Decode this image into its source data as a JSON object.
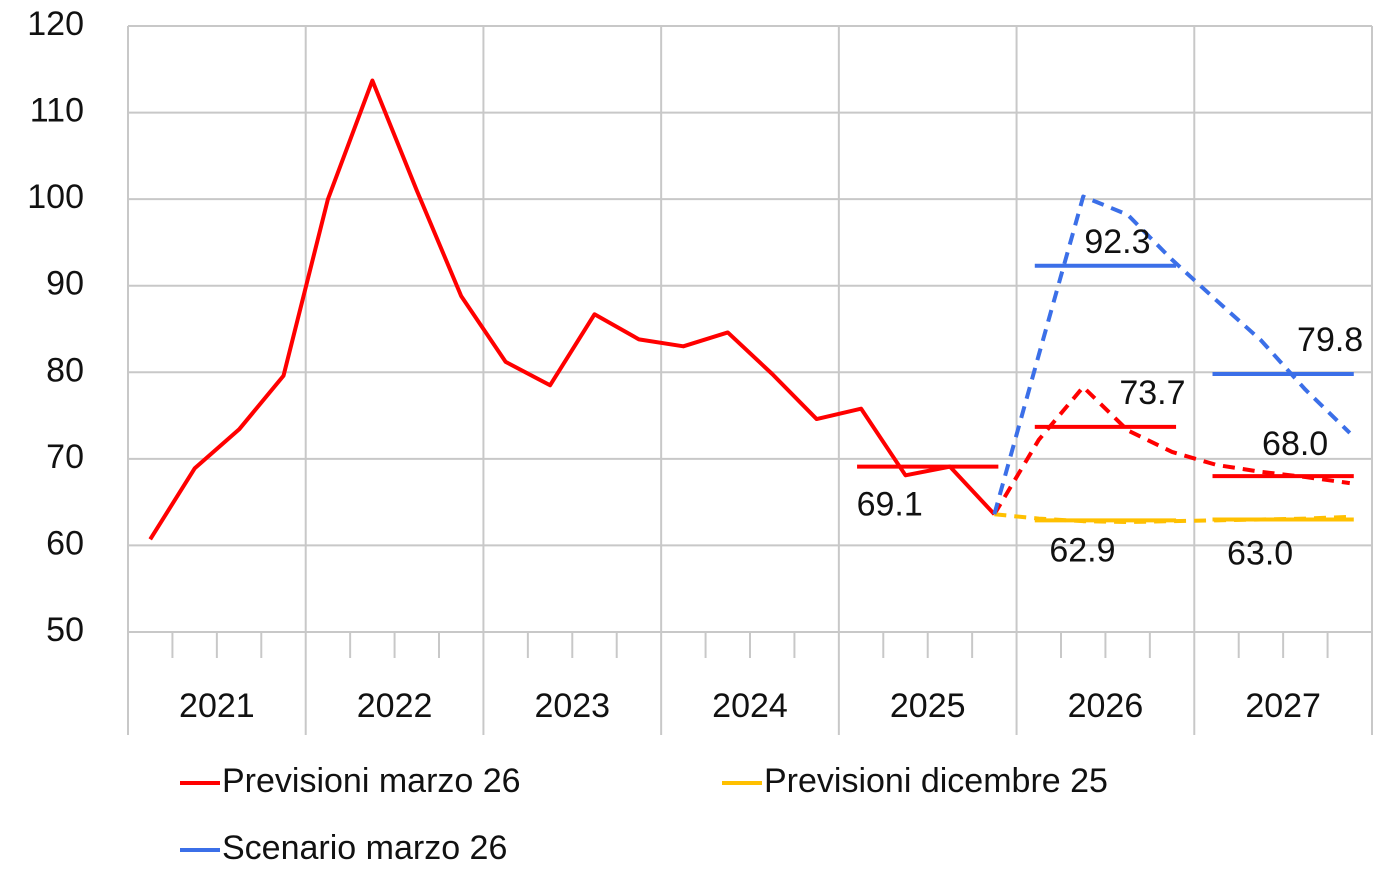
{
  "chart_data": {
    "type": "line",
    "categories": [
      null,
      null,
      null,
      null,
      null,
      null,
      null,
      null,
      null,
      null,
      null,
      null,
      null,
      null,
      null,
      null,
      null,
      null,
      null,
      null,
      null,
      null,
      null,
      null,
      null,
      null,
      null,
      null
    ],
    "groups": [
      "2021",
      "2022",
      "2023",
      "2024",
      "2025",
      "2026",
      "2027"
    ],
    "ylim": [
      50,
      120
    ],
    "yticks": [
      50,
      60,
      70,
      80,
      90,
      100,
      110,
      120
    ],
    "grid": true,
    "dashed_from": 19,
    "series": [
      {
        "name": "Previsioni marzo 26",
        "color": "#ff0000",
        "values": [
          60.7,
          68.9,
          73.4,
          79.6,
          100.0,
          113.7,
          101.0,
          88.8,
          81.2,
          78.5,
          86.7,
          83.8,
          83.0,
          84.6,
          79.8,
          74.6,
          75.8,
          68.1,
          69.1,
          63.6,
          72.2,
          78.3,
          73.3,
          70.8,
          69.3,
          68.5,
          67.9,
          67.2
        ],
        "annual_values": [
          null,
          null,
          null,
          null,
          69.1,
          73.7,
          68.0
        ],
        "annual_value_labels": [
          null,
          null,
          null,
          null,
          "69.1",
          "73.7",
          "68.0"
        ]
      },
      {
        "name": "Previsioni dicembre 25",
        "color": "#ffc000",
        "values": [
          null,
          null,
          null,
          null,
          null,
          null,
          null,
          null,
          null,
          null,
          null,
          null,
          null,
          null,
          null,
          null,
          null,
          null,
          null,
          63.6,
          63.1,
          62.8,
          62.7,
          62.8,
          62.9,
          63.0,
          63.1,
          63.3
        ],
        "annual_values": [
          null,
          null,
          null,
          null,
          null,
          62.9,
          63.0
        ],
        "annual_value_labels": [
          null,
          null,
          null,
          null,
          null,
          "62.9",
          "63.0"
        ]
      },
      {
        "name": "Scenario marzo 26",
        "color": "#3b6fe8",
        "values": [
          null,
          null,
          null,
          null,
          null,
          null,
          null,
          null,
          null,
          null,
          null,
          null,
          null,
          null,
          null,
          null,
          null,
          null,
          null,
          63.6,
          82.0,
          100.3,
          98.2,
          93.0,
          88.3,
          83.7,
          78.0,
          73.0
        ],
        "annual_values": [
          null,
          null,
          null,
          null,
          null,
          92.3,
          79.8
        ],
        "annual_value_labels": [
          null,
          null,
          null,
          null,
          null,
          "92.3",
          "79.8"
        ]
      }
    ]
  }
}
